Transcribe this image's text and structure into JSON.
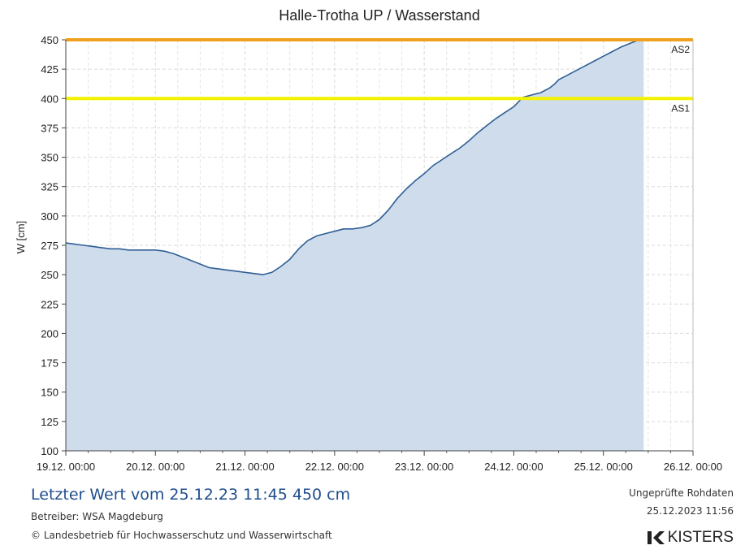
{
  "chart_data": {
    "type": "area",
    "title": "Halle-Trotha UP / Wasserstand",
    "ylabel": "W [cm]",
    "xlabel": "",
    "ylim": [
      100,
      450
    ],
    "y_ticks": [
      100,
      125,
      150,
      175,
      200,
      225,
      250,
      275,
      300,
      325,
      350,
      375,
      400,
      425,
      450
    ],
    "x_ticks": [
      "19.12. 00:00",
      "20.12. 00:00",
      "21.12. 00:00",
      "22.12. 00:00",
      "23.12. 00:00",
      "24.12. 00:00",
      "25.12. 00:00",
      "26.12. 00:00"
    ],
    "xlim_days": [
      0,
      7
    ],
    "grid": true,
    "series": [
      {
        "x_days": [
          0,
          0.1,
          0.2,
          0.3,
          0.4,
          0.5,
          0.6,
          0.7,
          0.8,
          0.9,
          1.0,
          1.1,
          1.2,
          1.3,
          1.4,
          1.5,
          1.6,
          1.7,
          1.8,
          1.9,
          2.0,
          2.1,
          2.2,
          2.3,
          2.4,
          2.5,
          2.6,
          2.7,
          2.8,
          2.9,
          3.0,
          3.1,
          3.2,
          3.3,
          3.4,
          3.5,
          3.6,
          3.7,
          3.8,
          3.9,
          4.0,
          4.1,
          4.2,
          4.3,
          4.4,
          4.5,
          4.6,
          4.7,
          4.8,
          4.9,
          5.0,
          5.1,
          5.2,
          5.3,
          5.4,
          5.45,
          5.5,
          5.6,
          5.7,
          5.8,
          5.9,
          6.0,
          6.1,
          6.2,
          6.3,
          6.4,
          6.45
        ],
        "values": [
          277,
          276,
          275,
          274,
          273,
          272,
          272,
          271,
          271,
          271,
          271,
          270,
          268,
          265,
          262,
          259,
          256,
          255,
          254,
          253,
          252,
          251,
          250,
          252,
          257,
          263,
          272,
          279,
          283,
          285,
          287,
          289,
          289,
          290,
          292,
          297,
          305,
          315,
          323,
          330,
          336,
          343,
          348,
          353,
          358,
          364,
          371,
          377,
          383,
          388,
          393,
          401,
          403,
          405,
          409,
          412,
          416,
          420,
          424,
          428,
          432,
          436,
          440,
          444,
          447,
          450,
          450
        ]
      }
    ],
    "thresholds": [
      {
        "label": "AS2",
        "value": 450,
        "color": "#f0a01e"
      },
      {
        "label": "AS1",
        "value": 400,
        "color": "#f2f200"
      }
    ],
    "colors": {
      "area": "#cfdcec",
      "line": "#2f5f95"
    }
  },
  "footer": {
    "last_value": "Letzter Wert vom 25.12.23 11:45  450 cm",
    "operator": "Betreiber: WSA Magdeburg",
    "copyright": "© Landesbetrieb für Hochwasserschutz und Wasserwirtschaft",
    "status": "Ungeprüfte Rohdaten",
    "timestamp": "25.12.2023 11:56",
    "logo": "KISTERS",
    "logo_icon": "kisters-k-icon"
  }
}
